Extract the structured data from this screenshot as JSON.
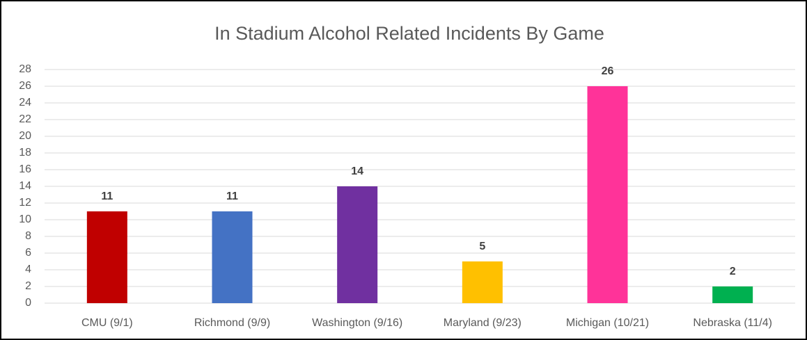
{
  "chart_data": {
    "type": "bar",
    "title": "In Stadium Alcohol Related Incidents By Game",
    "categories": [
      "CMU (9/1)",
      "Richmond (9/9)",
      "Washington (9/16)",
      "Maryland (9/23)",
      "Michigan (10/21)",
      "Nebraska (11/4)"
    ],
    "values": [
      11,
      11,
      14,
      5,
      26,
      2
    ],
    "colors": [
      "#c00000",
      "#4472c4",
      "#7030a0",
      "#ffc000",
      "#ff3399",
      "#00b050"
    ],
    "ylim": [
      0,
      28
    ],
    "yticks": [
      0,
      2,
      4,
      6,
      8,
      10,
      12,
      14,
      16,
      18,
      20,
      22,
      24,
      26,
      28
    ],
    "grid": true
  }
}
